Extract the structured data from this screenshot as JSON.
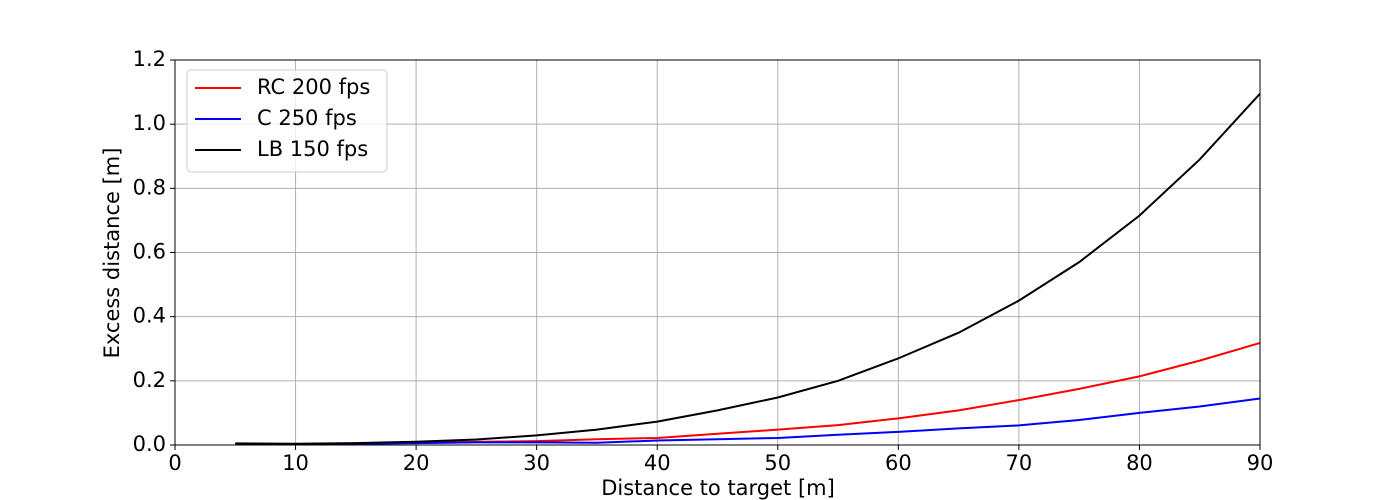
{
  "chart_data": {
    "type": "line",
    "xlabel": "Distance to target [m]",
    "ylabel": "Excess distance [m]",
    "x": [
      5,
      10,
      15,
      20,
      25,
      30,
      35,
      40,
      45,
      50,
      55,
      60,
      65,
      70,
      75,
      80,
      85,
      90
    ],
    "series": [
      {
        "name": "RC 200 fps",
        "color": "#ff0000",
        "values": [
          0.003,
          0.003,
          0.005,
          0.008,
          0.01,
          0.012,
          0.018,
          0.022,
          0.035,
          0.048,
          0.062,
          0.083,
          0.108,
          0.14,
          0.175,
          0.214,
          0.263,
          0.318
        ]
      },
      {
        "name": "C 250 fps",
        "color": "#0000ff",
        "values": [
          0.002,
          0.002,
          0.004,
          0.006,
          0.008,
          0.008,
          0.007,
          0.014,
          0.018,
          0.022,
          0.032,
          0.041,
          0.052,
          0.061,
          0.078,
          0.1,
          0.12,
          0.145
        ]
      },
      {
        "name": "LB 150 fps",
        "color": "#000000",
        "values": [
          0.005,
          0.004,
          0.006,
          0.01,
          0.017,
          0.03,
          0.048,
          0.073,
          0.108,
          0.148,
          0.2,
          0.27,
          0.35,
          0.45,
          0.57,
          0.715,
          0.89,
          1.095
        ]
      }
    ],
    "xlim": [
      0,
      90
    ],
    "xticks": [
      0,
      10,
      20,
      30,
      40,
      50,
      60,
      70,
      80,
      90
    ],
    "ylim": [
      0,
      1.2
    ],
    "yticks": [
      {
        "value": 0,
        "label": "0.0"
      },
      0.2,
      0.4,
      0.6,
      0.8,
      {
        "value": 1,
        "label": "1.0"
      },
      1.2
    ],
    "grid": true,
    "legend": "upper-left"
  }
}
